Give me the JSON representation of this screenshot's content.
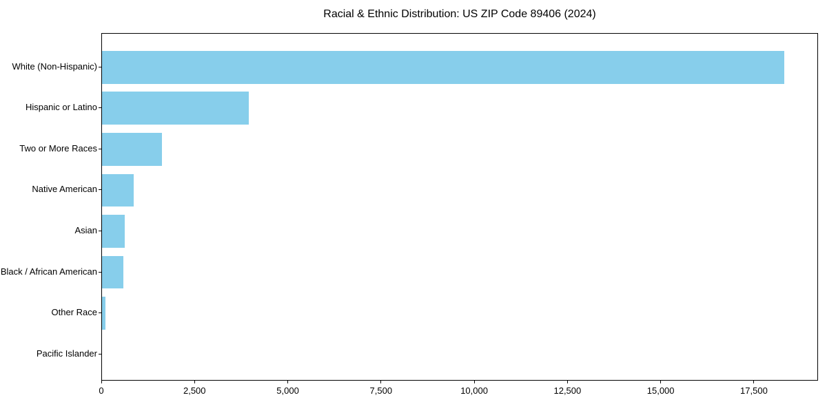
{
  "chart_data": {
    "type": "bar",
    "orientation": "horizontal",
    "title": "Racial & Ethnic Distribution: US ZIP Code 89406 (2024)",
    "categories": [
      "White (Non-Hispanic)",
      "Hispanic or Latino",
      "Two or More Races",
      "Native American",
      "Asian",
      "Black / African American",
      "Other Race",
      "Pacific Islander"
    ],
    "values": [
      18300,
      3930,
      1600,
      850,
      605,
      575,
      100,
      0
    ],
    "xlabel": "",
    "ylabel": "",
    "xlim": [
      0,
      19220
    ],
    "x_ticks": [
      {
        "value": 0,
        "label": "0"
      },
      {
        "value": 2500,
        "label": "2,500"
      },
      {
        "value": 5000,
        "label": "5,000"
      },
      {
        "value": 7500,
        "label": "7,500"
      },
      {
        "value": 10000,
        "label": "10,000"
      },
      {
        "value": 12500,
        "label": "12,500"
      },
      {
        "value": 15000,
        "label": "15,000"
      },
      {
        "value": 17500,
        "label": "17,500"
      }
    ],
    "bar_color": "#87CEEB",
    "axis_color": "#000000",
    "text_color": "#000000",
    "plot_background": "#ffffff",
    "grid": false,
    "legend": null
  }
}
